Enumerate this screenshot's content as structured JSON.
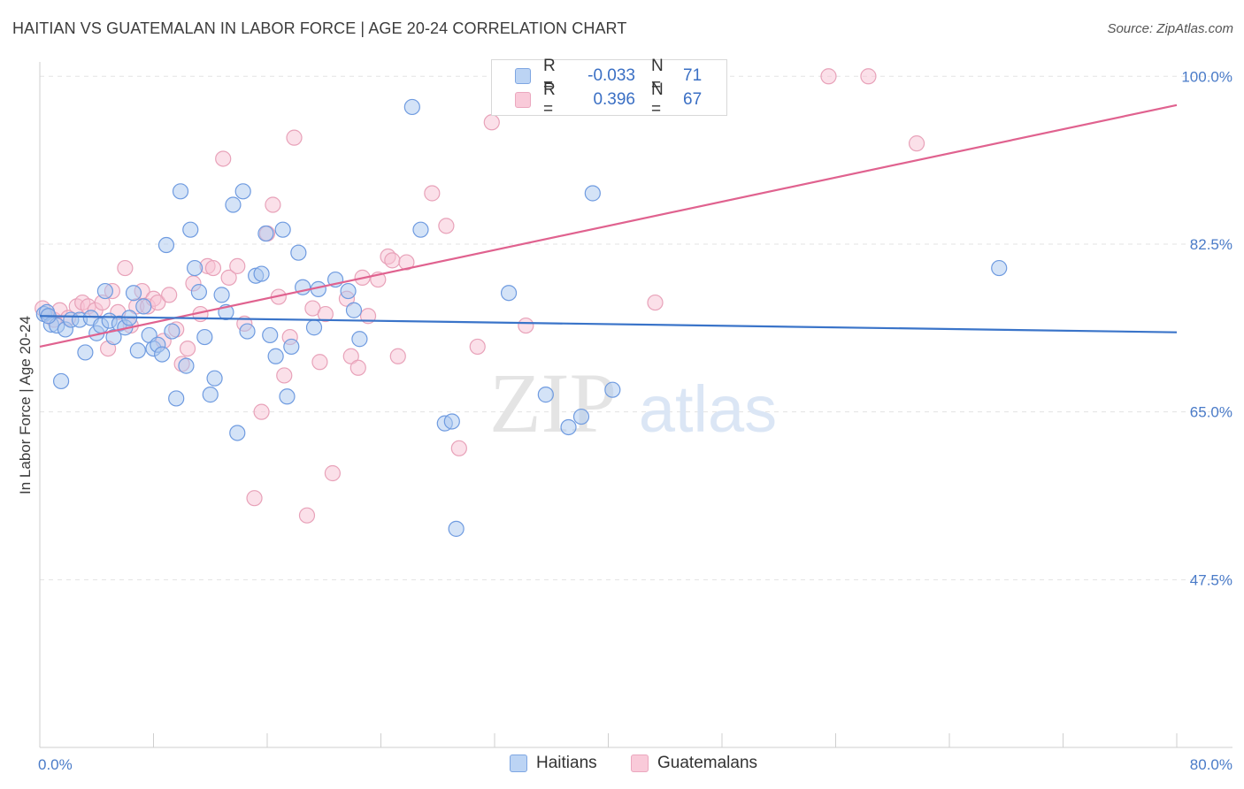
{
  "title": "HAITIAN VS GUATEMALAN IN LABOR FORCE | AGE 20-24 CORRELATION CHART",
  "source": "Source: ZipAtlas.com",
  "watermark": {
    "zip": "ZIP",
    "atlas": "atlas"
  },
  "colors": {
    "haitians_fill": "#a9c7f0",
    "haitians_stroke": "#6f9be0",
    "haitians_line": "#3a74c9",
    "guatemalans_fill": "#f7c2d3",
    "guatemalans_stroke": "#e8a2b9",
    "guatemalans_line": "#e0628f",
    "tick_text": "#4a7bc8",
    "grid": "#e3e3e3"
  },
  "legend_top": {
    "rows": [
      {
        "r_label": "R =",
        "r_value": "-0.033",
        "n_label": "N =",
        "n_value": "71"
      },
      {
        "r_label": "R =",
        "r_value": "0.396",
        "n_label": "N =",
        "n_value": "67"
      }
    ]
  },
  "legend_bottom": {
    "items": [
      "Haitians",
      "Guatemalans"
    ]
  },
  "chart_data": {
    "type": "scatter",
    "ylabel": "In Labor Force | Age 20-24",
    "xlim": [
      0,
      80
    ],
    "ylim": [
      30,
      101.5
    ],
    "x_tick_labels": [
      {
        "value": 0,
        "label": "0.0%"
      },
      {
        "value": 80,
        "label": "80.0%"
      }
    ],
    "y_tick_labels": [
      {
        "value": 100,
        "label": "100.0%"
      },
      {
        "value": 82.5,
        "label": "82.5%"
      },
      {
        "value": 65,
        "label": "65.0%"
      },
      {
        "value": 47.5,
        "label": "47.5%"
      }
    ],
    "series": [
      {
        "name": "Haitians",
        "trend": {
          "x": [
            0,
            80
          ],
          "y": [
            75.0,
            73.3
          ]
        },
        "points": [
          [
            0.3,
            75.2
          ],
          [
            0.5,
            75.4
          ],
          [
            0.8,
            74.1
          ],
          [
            1.2,
            74.0
          ],
          [
            1.5,
            68.2
          ],
          [
            1.8,
            73.6
          ],
          [
            2.2,
            74.6
          ],
          [
            2.8,
            74.6
          ],
          [
            3.2,
            71.2
          ],
          [
            3.6,
            74.8
          ],
          [
            4.0,
            73.2
          ],
          [
            4.3,
            74.0
          ],
          [
            4.6,
            77.6
          ],
          [
            4.9,
            74.5
          ],
          [
            5.2,
            72.8
          ],
          [
            5.6,
            74.2
          ],
          [
            6.0,
            73.8
          ],
          [
            6.3,
            74.8
          ],
          [
            6.6,
            77.4
          ],
          [
            6.9,
            71.4
          ],
          [
            7.3,
            76.0
          ],
          [
            7.7,
            73.0
          ],
          [
            8.0,
            71.6
          ],
          [
            8.3,
            72.0
          ],
          [
            8.6,
            71.0
          ],
          [
            8.9,
            82.4
          ],
          [
            9.3,
            73.4
          ],
          [
            9.6,
            66.4
          ],
          [
            9.9,
            88.0
          ],
          [
            10.3,
            69.8
          ],
          [
            10.6,
            84.0
          ],
          [
            10.9,
            80.0
          ],
          [
            11.2,
            77.5
          ],
          [
            11.6,
            72.8
          ],
          [
            12.0,
            66.8
          ],
          [
            12.3,
            68.5
          ],
          [
            12.8,
            77.2
          ],
          [
            13.1,
            75.4
          ],
          [
            13.6,
            86.6
          ],
          [
            13.9,
            62.8
          ],
          [
            14.3,
            88.0
          ],
          [
            14.6,
            73.4
          ],
          [
            15.2,
            79.2
          ],
          [
            15.6,
            79.4
          ],
          [
            15.9,
            83.6
          ],
          [
            16.2,
            73.0
          ],
          [
            16.6,
            70.8
          ],
          [
            17.1,
            84.0
          ],
          [
            17.4,
            66.6
          ],
          [
            17.7,
            71.8
          ],
          [
            18.2,
            81.6
          ],
          [
            18.5,
            78.0
          ],
          [
            19.3,
            73.8
          ],
          [
            19.6,
            77.8
          ],
          [
            20.8,
            78.8
          ],
          [
            21.7,
            77.6
          ],
          [
            22.1,
            75.6
          ],
          [
            22.5,
            72.6
          ],
          [
            26.2,
            96.8
          ],
          [
            26.8,
            84.0
          ],
          [
            28.5,
            63.8
          ],
          [
            29.0,
            64.0
          ],
          [
            29.3,
            52.8
          ],
          [
            33.0,
            77.4
          ],
          [
            35.6,
            66.8
          ],
          [
            37.2,
            63.4
          ],
          [
            38.1,
            64.5
          ],
          [
            38.9,
            87.8
          ],
          [
            40.3,
            67.3
          ],
          [
            67.5,
            80.0
          ],
          [
            0.6,
            75.0
          ]
        ]
      },
      {
        "name": "Guatemalans",
        "trend": {
          "x": [
            0,
            80
          ],
          "y": [
            71.8,
            97.0
          ]
        },
        "points": [
          [
            0.2,
            75.8
          ],
          [
            0.6,
            75.0
          ],
          [
            1.0,
            74.6
          ],
          [
            1.4,
            75.6
          ],
          [
            2.0,
            74.8
          ],
          [
            2.6,
            76.0
          ],
          [
            3.0,
            76.4
          ],
          [
            3.4,
            76.0
          ],
          [
            3.9,
            75.6
          ],
          [
            4.4,
            76.4
          ],
          [
            4.8,
            71.6
          ],
          [
            5.1,
            77.6
          ],
          [
            5.5,
            75.4
          ],
          [
            6.0,
            80.0
          ],
          [
            6.4,
            74.0
          ],
          [
            6.8,
            76.0
          ],
          [
            7.2,
            77.6
          ],
          [
            7.6,
            76.0
          ],
          [
            8.0,
            76.8
          ],
          [
            8.3,
            76.4
          ],
          [
            8.7,
            72.4
          ],
          [
            9.1,
            77.2
          ],
          [
            9.6,
            73.6
          ],
          [
            10.0,
            70.0
          ],
          [
            10.4,
            71.6
          ],
          [
            10.8,
            78.4
          ],
          [
            11.3,
            75.2
          ],
          [
            11.8,
            80.2
          ],
          [
            12.2,
            80.0
          ],
          [
            12.9,
            91.4
          ],
          [
            13.3,
            79.0
          ],
          [
            13.9,
            80.2
          ],
          [
            14.4,
            74.2
          ],
          [
            15.1,
            56.0
          ],
          [
            15.6,
            65.0
          ],
          [
            16.0,
            83.6
          ],
          [
            16.4,
            86.6
          ],
          [
            16.8,
            77.0
          ],
          [
            17.2,
            68.8
          ],
          [
            17.6,
            72.8
          ],
          [
            17.9,
            93.6
          ],
          [
            18.8,
            54.2
          ],
          [
            19.2,
            75.8
          ],
          [
            19.7,
            70.2
          ],
          [
            20.1,
            75.2
          ],
          [
            20.6,
            58.6
          ],
          [
            21.6,
            76.8
          ],
          [
            21.9,
            70.8
          ],
          [
            22.4,
            69.6
          ],
          [
            23.1,
            75.0
          ],
          [
            23.8,
            78.8
          ],
          [
            24.5,
            81.2
          ],
          [
            24.8,
            80.8
          ],
          [
            25.2,
            70.8
          ],
          [
            25.8,
            80.6
          ],
          [
            27.6,
            87.8
          ],
          [
            28.6,
            84.4
          ],
          [
            29.5,
            61.2
          ],
          [
            30.8,
            71.8
          ],
          [
            31.8,
            95.2
          ],
          [
            34.2,
            74.0
          ],
          [
            36.7,
            100.0
          ],
          [
            43.3,
            76.4
          ],
          [
            55.5,
            100.0
          ],
          [
            58.3,
            100.0
          ],
          [
            61.7,
            93.0
          ],
          [
            22.7,
            79.0
          ]
        ]
      }
    ]
  }
}
